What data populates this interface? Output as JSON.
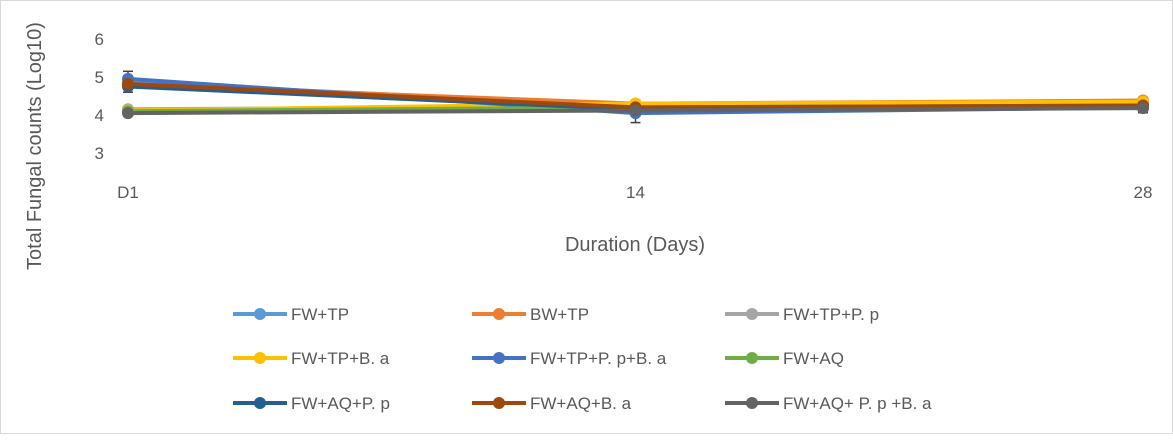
{
  "chart_data": {
    "type": "line",
    "title": "",
    "xlabel": "Duration (Days)",
    "ylabel": "Total Fungal counts (Log10)",
    "categories": [
      "D1",
      "14",
      "28"
    ],
    "yticks": [
      "3",
      "4",
      "5",
      "6"
    ],
    "ylim": [
      3,
      6
    ],
    "grid": false,
    "legend_position": "bottom",
    "series": [
      {
        "name": "FW+TP",
        "color": "#5b9bd5",
        "values": [
          4.85,
          4.25,
          4.3
        ],
        "error": [
          0.15,
          0.1,
          0.1
        ]
      },
      {
        "name": "BW+TP",
        "color": "#ed7d31",
        "values": [
          4.8,
          4.3,
          4.38
        ],
        "error": [
          0.1,
          0.08,
          0.08
        ]
      },
      {
        "name": "FW+TP+P. p",
        "color": "#a5a5a5",
        "values": [
          4.15,
          4.22,
          4.3
        ],
        "error": [
          0.05,
          0.08,
          0.08
        ]
      },
      {
        "name": "FW+TP+B. a",
        "color": "#ffc000",
        "values": [
          4.12,
          4.3,
          4.35
        ],
        "error": [
          0.05,
          0.08,
          0.08
        ]
      },
      {
        "name": "FW+TP+P. p+B. a",
        "color": "#4472c4",
        "values": [
          4.95,
          4.05,
          4.2
        ],
        "error": [
          0.2,
          0.25,
          0.1
        ]
      },
      {
        "name": "FW+AQ",
        "color": "#70ad47",
        "values": [
          4.1,
          4.2,
          4.25
        ],
        "error": [
          0.05,
          0.08,
          0.08
        ]
      },
      {
        "name": "FW+AQ+P. p",
        "color": "#255e91",
        "values": [
          4.75,
          4.15,
          4.22
        ],
        "error": [
          0.15,
          0.1,
          0.1
        ]
      },
      {
        "name": "FW+AQ+B. a",
        "color": "#9e480e",
        "values": [
          4.82,
          4.2,
          4.25
        ],
        "error": [
          0.1,
          0.08,
          0.08
        ]
      },
      {
        "name": "FW+AQ+ P. p +B. a",
        "color": "#636363",
        "values": [
          4.05,
          4.12,
          4.18
        ],
        "error": [
          0.05,
          0.1,
          0.12
        ]
      }
    ]
  }
}
